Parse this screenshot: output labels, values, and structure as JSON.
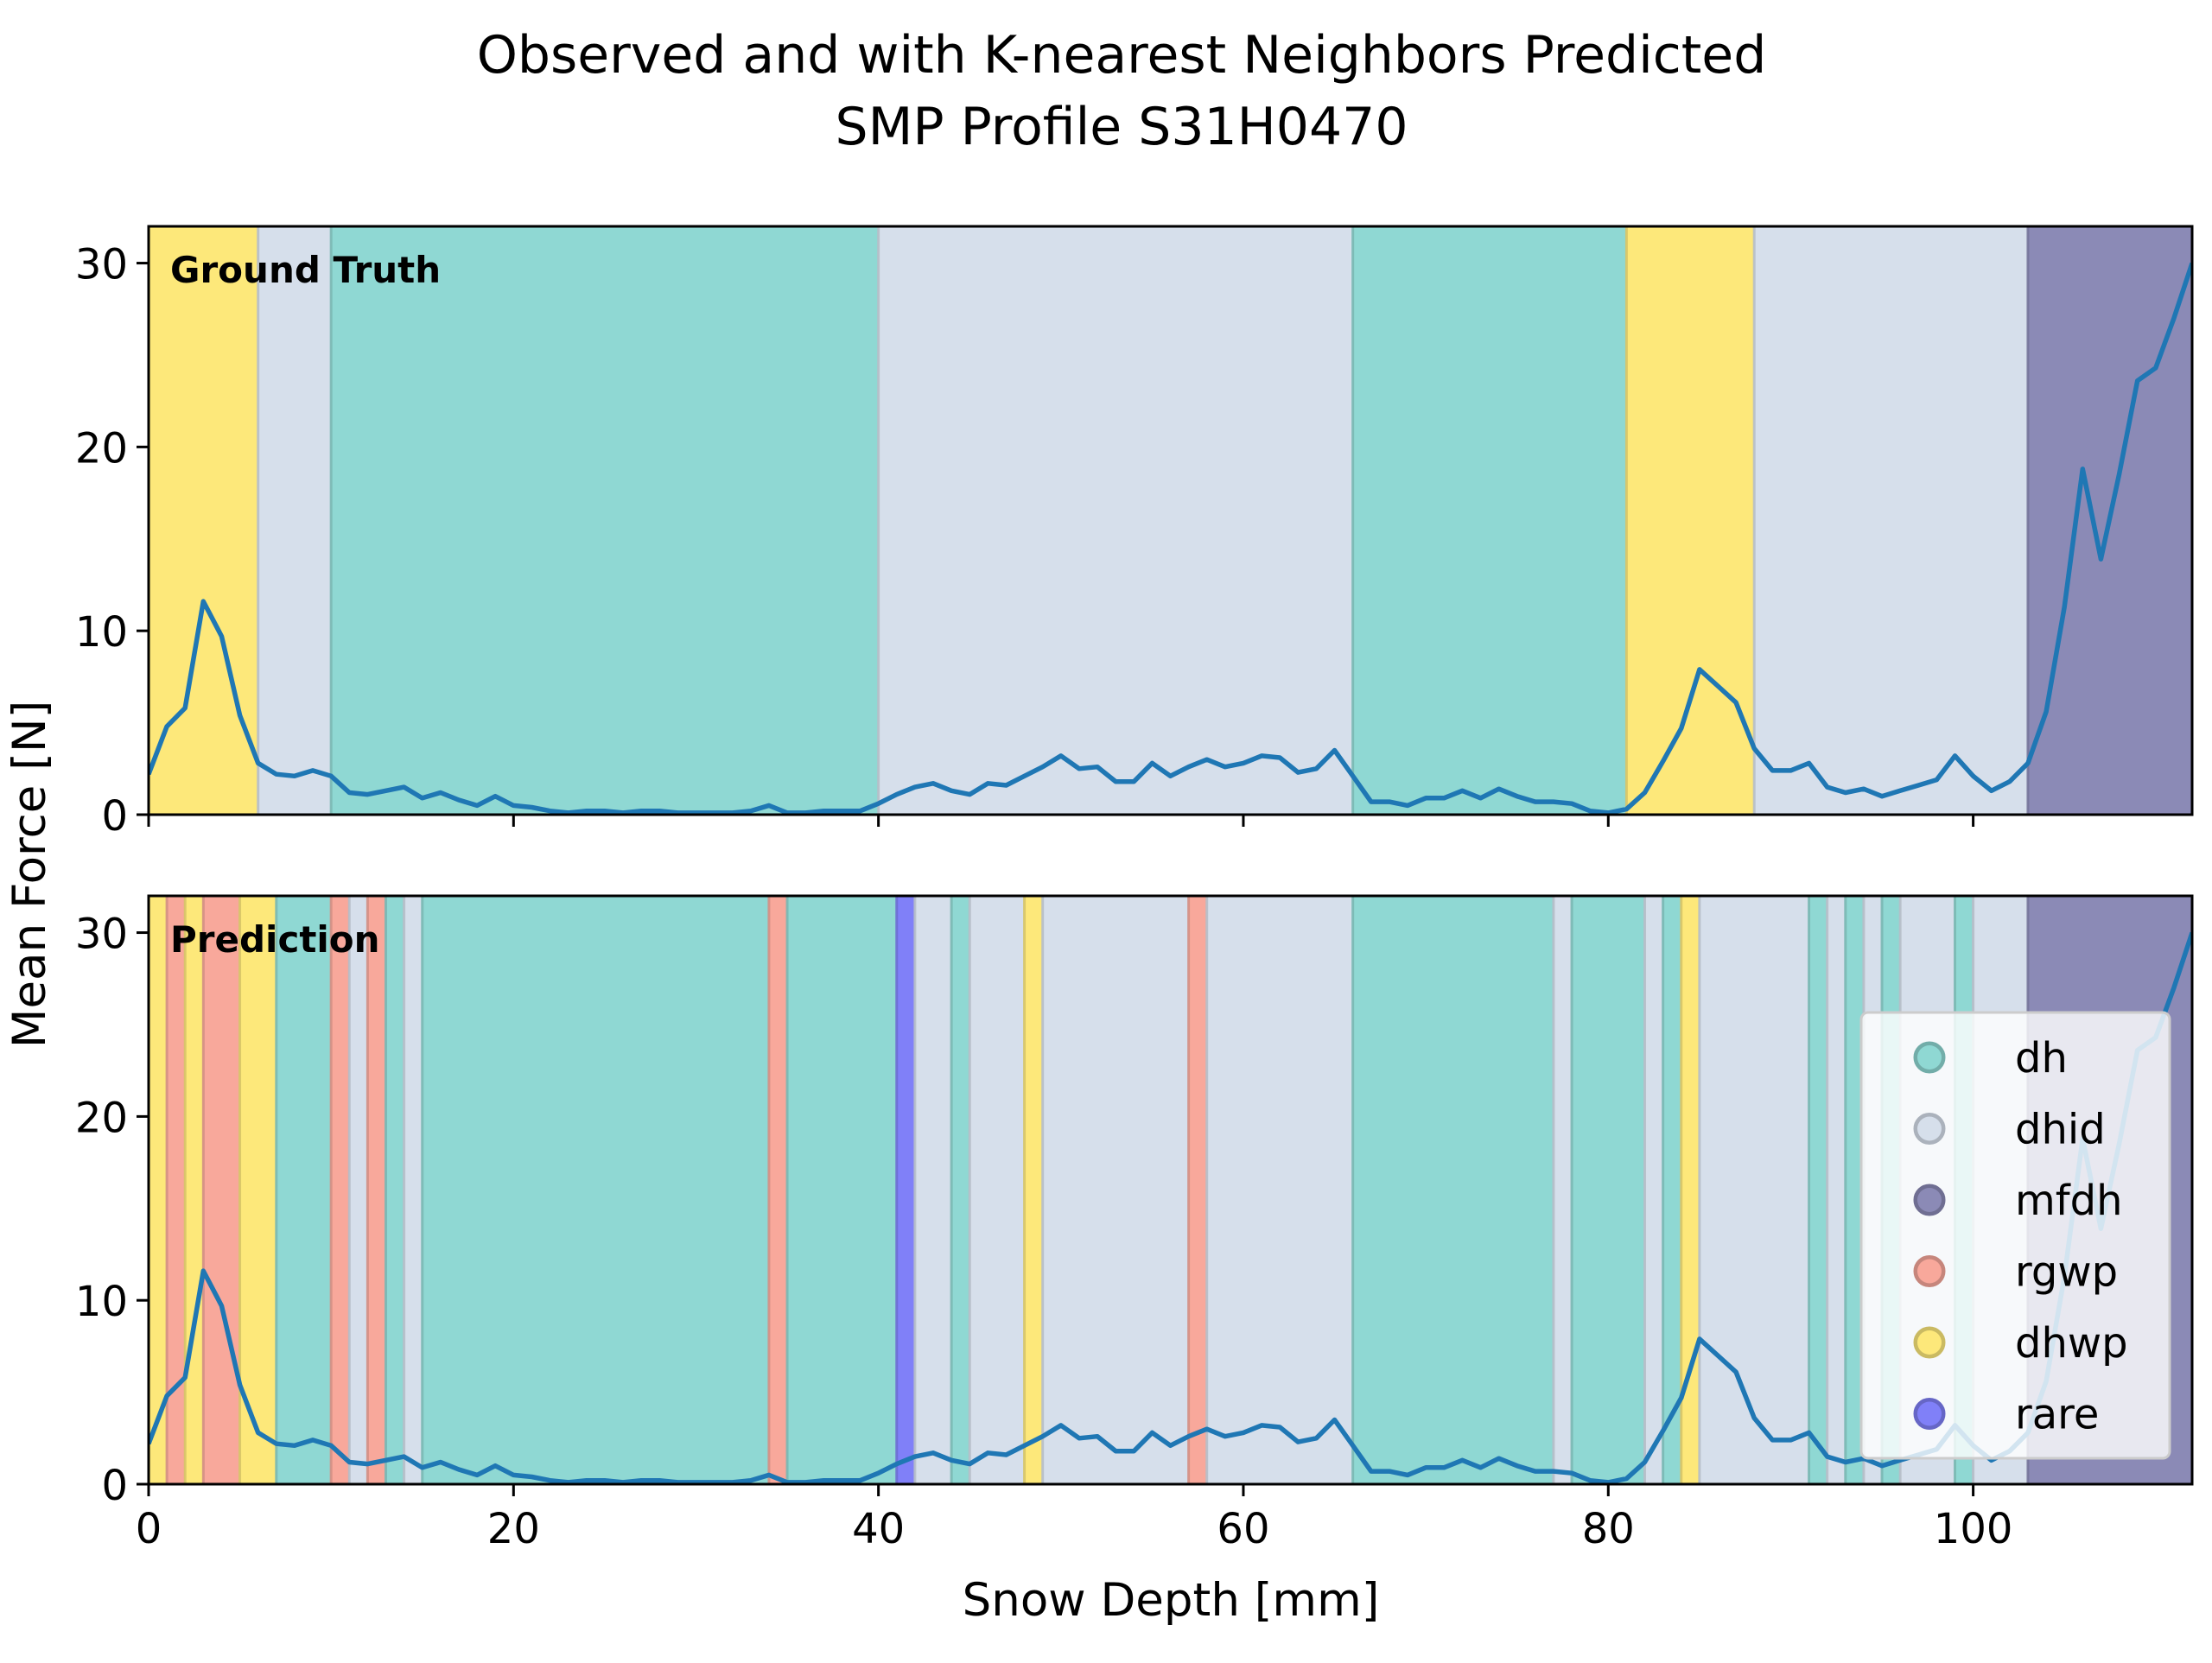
{
  "title_line1": "Observed and with K-nearest Neighbors Predicted",
  "title_line2": "SMP Profile S31H0470",
  "xlabel": "Snow Depth [mm]",
  "ylabel": "Mean Force [N]",
  "panel_labels": [
    "Ground Truth",
    "Prediction"
  ],
  "colors": {
    "dh": "#8fd8d3",
    "dhid": "#d6dfeb",
    "mfdh": "#8b8ab6",
    "rgwp": "#f8a89b",
    "dhwp": "#fde87a",
    "rare": "#8080f8",
    "line": "#1f77b4"
  },
  "chart_data": {
    "type": "line",
    "xlim": [
      0,
      112
    ],
    "ylim": [
      0,
      32
    ],
    "xticks": [
      0,
      20,
      40,
      60,
      80,
      100
    ],
    "yticks": [
      0,
      10,
      20,
      30
    ],
    "legend": {
      "placement": "lower-right of Prediction panel",
      "entries": [
        "dh",
        "dhid",
        "mfdh",
        "rgwp",
        "dhwp",
        "rare"
      ]
    },
    "series": [
      {
        "x": [
          0,
          1,
          2,
          3,
          4,
          5,
          6,
          7,
          8,
          9,
          10,
          11,
          12,
          13,
          14,
          15,
          16,
          17,
          18,
          19,
          20,
          21,
          22,
          23,
          24,
          25,
          26,
          27,
          28,
          29,
          30,
          31,
          32,
          33,
          34,
          35,
          36,
          37,
          38,
          39,
          40,
          41,
          42,
          43,
          44,
          45,
          46,
          47,
          48,
          49,
          50,
          51,
          52,
          53,
          54,
          55,
          56,
          57,
          58,
          59,
          60,
          61,
          62,
          63,
          64,
          65,
          66,
          67,
          68,
          69,
          70,
          71,
          72,
          73,
          74,
          75,
          76,
          77,
          78,
          79,
          80,
          81,
          82,
          83,
          84,
          85,
          86,
          87,
          88,
          89,
          90,
          91,
          92,
          93,
          94,
          95,
          96,
          97,
          98,
          99,
          100,
          101,
          102,
          103,
          104,
          105,
          106,
          107,
          108,
          109,
          110,
          111,
          112
        ],
        "y": [
          2.2,
          4.8,
          5.8,
          11.6,
          9.7,
          5.4,
          2.8,
          2.2,
          2.1,
          2.4,
          2.1,
          1.2,
          1.1,
          1.3,
          1.5,
          0.9,
          1.2,
          0.8,
          0.5,
          1.0,
          0.5,
          0.4,
          0.2,
          0.1,
          0.2,
          0.2,
          0.1,
          0.2,
          0.2,
          0.1,
          0.1,
          0.1,
          0.1,
          0.2,
          0.5,
          0.1,
          0.1,
          0.2,
          0.2,
          0.2,
          0.6,
          1.1,
          1.5,
          1.7,
          1.3,
          1.1,
          1.7,
          1.6,
          2.1,
          2.6,
          3.2,
          2.5,
          2.6,
          1.8,
          1.8,
          2.8,
          2.1,
          2.6,
          3.0,
          2.6,
          2.8,
          3.2,
          3.1,
          2.3,
          2.5,
          3.5,
          2.1,
          0.7,
          0.7,
          0.5,
          0.9,
          0.9,
          1.3,
          0.9,
          1.4,
          1.0,
          0.7,
          0.7,
          0.6,
          0.2,
          0.1,
          0.3,
          1.2,
          2.9,
          4.7,
          7.9,
          7.0,
          6.1,
          3.6,
          2.4,
          2.4,
          2.8,
          1.5,
          1.2,
          1.4,
          1.0,
          1.3,
          1.6,
          1.9,
          3.2,
          2.1,
          1.3,
          1.8,
          2.8,
          5.6,
          11.3,
          18.8,
          13.9,
          18.5,
          23.6,
          24.3,
          27.0,
          30.0
        ]
      }
    ],
    "panels": [
      {
        "name": "Ground Truth",
        "segments": [
          {
            "start": 0,
            "end": 6,
            "label": "dhwp"
          },
          {
            "start": 6,
            "end": 10,
            "label": "dhid"
          },
          {
            "start": 10,
            "end": 40,
            "label": "dh"
          },
          {
            "start": 40,
            "end": 66,
            "label": "dhid"
          },
          {
            "start": 66,
            "end": 81,
            "label": "dh"
          },
          {
            "start": 81,
            "end": 88,
            "label": "dhwp"
          },
          {
            "start": 88,
            "end": 103,
            "label": "dhid"
          },
          {
            "start": 103,
            "end": 112,
            "label": "mfdh"
          }
        ]
      },
      {
        "name": "Prediction",
        "segments": [
          {
            "start": 0,
            "end": 1,
            "label": "dhwp"
          },
          {
            "start": 1,
            "end": 2,
            "label": "rgwp"
          },
          {
            "start": 2,
            "end": 3,
            "label": "dhwp"
          },
          {
            "start": 3,
            "end": 5,
            "label": "rgwp"
          },
          {
            "start": 5,
            "end": 7,
            "label": "dhwp"
          },
          {
            "start": 7,
            "end": 10,
            "label": "dh"
          },
          {
            "start": 10,
            "end": 11,
            "label": "rgwp"
          },
          {
            "start": 11,
            "end": 12,
            "label": "dhid"
          },
          {
            "start": 12,
            "end": 13,
            "label": "rgwp"
          },
          {
            "start": 13,
            "end": 14,
            "label": "dh"
          },
          {
            "start": 14,
            "end": 15,
            "label": "dhid"
          },
          {
            "start": 15,
            "end": 34,
            "label": "dh"
          },
          {
            "start": 34,
            "end": 35,
            "label": "rgwp"
          },
          {
            "start": 35,
            "end": 41,
            "label": "dh"
          },
          {
            "start": 41,
            "end": 42,
            "label": "rare"
          },
          {
            "start": 42,
            "end": 44,
            "label": "dhid"
          },
          {
            "start": 44,
            "end": 45,
            "label": "dh"
          },
          {
            "start": 45,
            "end": 48,
            "label": "dhid"
          },
          {
            "start": 48,
            "end": 49,
            "label": "dhwp"
          },
          {
            "start": 49,
            "end": 57,
            "label": "dhid"
          },
          {
            "start": 57,
            "end": 58,
            "label": "rgwp"
          },
          {
            "start": 58,
            "end": 66,
            "label": "dhid"
          },
          {
            "start": 66,
            "end": 77,
            "label": "dh"
          },
          {
            "start": 77,
            "end": 78,
            "label": "dhid"
          },
          {
            "start": 78,
            "end": 82,
            "label": "dh"
          },
          {
            "start": 82,
            "end": 83,
            "label": "dhid"
          },
          {
            "start": 83,
            "end": 84,
            "label": "dh"
          },
          {
            "start": 84,
            "end": 85,
            "label": "dhwp"
          },
          {
            "start": 85,
            "end": 91,
            "label": "dhid"
          },
          {
            "start": 91,
            "end": 92,
            "label": "dh"
          },
          {
            "start": 92,
            "end": 93,
            "label": "dhid"
          },
          {
            "start": 93,
            "end": 94,
            "label": "dh"
          },
          {
            "start": 94,
            "end": 95,
            "label": "dhid"
          },
          {
            "start": 95,
            "end": 96,
            "label": "dh"
          },
          {
            "start": 96,
            "end": 99,
            "label": "dhid"
          },
          {
            "start": 99,
            "end": 100,
            "label": "dh"
          },
          {
            "start": 100,
            "end": 103,
            "label": "dhid"
          },
          {
            "start": 103,
            "end": 112,
            "label": "mfdh"
          }
        ]
      }
    ]
  }
}
